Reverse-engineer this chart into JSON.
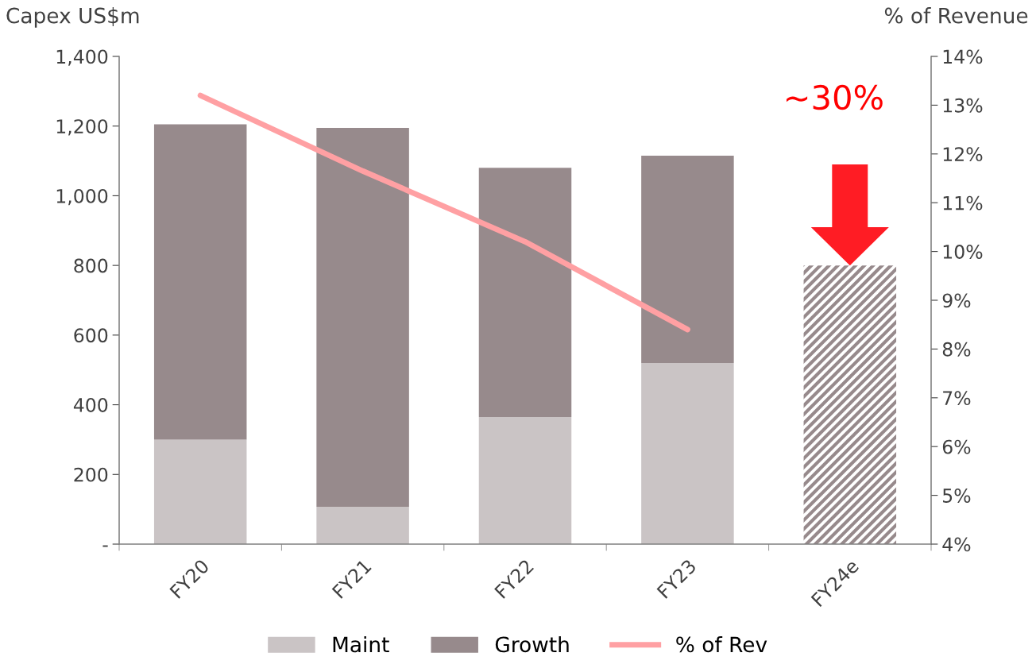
{
  "chart_data": {
    "type": "bar",
    "stacked": true,
    "ylabel": "Capex US$m",
    "y2label": "% of Revenue",
    "categories": [
      "FY20",
      "FY21",
      "FY22",
      "FY23",
      "FY24e"
    ],
    "series": [
      {
        "name": "Maint",
        "color": "#cac4c5",
        "values": [
          300,
          107,
          365,
          520,
          null
        ]
      },
      {
        "name": "Growth",
        "color": "#978a8c",
        "values": [
          905,
          1088,
          715,
          595,
          null
        ]
      },
      {
        "color": "#978a8c",
        "values": [
          null,
          null,
          null,
          null,
          800
        ]
      },
      {
        "name": "% of Rev",
        "type": "line",
        "axis": "y2",
        "color": "#ffa0a3",
        "values": [
          13.2,
          11.65,
          10.2,
          8.4,
          null
        ]
      }
    ],
    "ylim": [
      0,
      1400
    ],
    "yticks": [
      {
        "value": 0,
        "label": "-"
      },
      {
        "value": 200,
        "label": "200"
      },
      {
        "value": 400,
        "label": "400"
      },
      {
        "value": 600,
        "label": "600"
      },
      {
        "value": 800,
        "label": "800"
      },
      {
        "value": 1000,
        "label": "1,000"
      },
      {
        "value": 1200,
        "label": "1,200"
      },
      {
        "value": 1400,
        "label": "1,400"
      }
    ],
    "y2lim": [
      4,
      14
    ],
    "y2ticks": [
      {
        "value": 4,
        "label": "4%"
      },
      {
        "value": 5,
        "label": "5%"
      },
      {
        "value": 6,
        "label": "6%"
      },
      {
        "value": 7,
        "label": "7%"
      },
      {
        "value": 8,
        "label": "8%"
      },
      {
        "value": 9,
        "label": "9%"
      },
      {
        "value": 10,
        "label": "10%"
      },
      {
        "value": 11,
        "label": "11%"
      },
      {
        "value": 12,
        "label": "12%"
      },
      {
        "value": 13,
        "label": "13%"
      },
      {
        "value": 14,
        "label": "14%"
      }
    ],
    "annotations": [
      "~30%"
    ],
    "grid": false,
    "legend": "bottom"
  }
}
